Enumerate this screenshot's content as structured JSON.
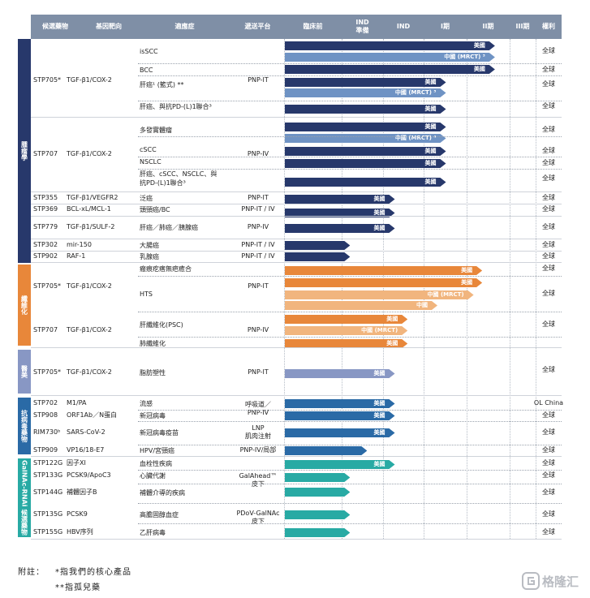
{
  "colors": {
    "oncology": "#27386b",
    "oncology_light": "#6f93c4",
    "fibrosis": "#e8873a",
    "fibrosis_light": "#f1b57e",
    "aesthetics": "#8897c4",
    "antiviral": "#2a6aa6",
    "galnac": "#28aaa4",
    "header": "#7f8fa6"
  },
  "columns": [
    "候選藥物",
    "基因靶向",
    "適應症",
    "遞送平台",
    "臨床前",
    "IND\n準備",
    "IND",
    "I期",
    "II期",
    "III期",
    "權利"
  ],
  "groups": [
    {
      "label": "腫瘤學",
      "color": "#27386b"
    },
    {
      "label": "纖維化",
      "color": "#e8873a"
    },
    {
      "label": "醫美",
      "color": "#8897c4"
    },
    {
      "label": "抗病毒藥物",
      "color": "#2a6aa6"
    },
    {
      "label": "GalNAc-RNAi 候選藥物",
      "color": "#28aaa4"
    }
  ],
  "programs": [
    {
      "drug": "STP705*",
      "target": "TGF-β1/COX-2",
      "platform": "PNP-IT"
    },
    {
      "drug": "STP707",
      "target": "TGF-β1/COX-2",
      "platform": "PNP-IV"
    },
    {
      "drug": "STP355",
      "target": "TGF-β1/VEGFR2",
      "platform": "PNP-IT"
    },
    {
      "drug": "STP369",
      "target": "BCL-xL/MCL-1",
      "platform": "PNP-IT / IV"
    },
    {
      "drug": "STP779",
      "target": "TGF-β1/SULF-2",
      "platform": "PNP-IV"
    },
    {
      "drug": "STP302",
      "target": "mir-150",
      "platform": "PNP-IT / IV"
    },
    {
      "drug": "STP902",
      "target": "RAF-1",
      "platform": "PNP-IT / IV"
    },
    {
      "drug": "STP705*",
      "target": "TGF-β1/COX-2",
      "platform": "PNP-IT"
    },
    {
      "drug": "STP707",
      "target": "TGF-β1/COX-2",
      "platform": "PNP-IV"
    },
    {
      "drug": "STP705*",
      "target": "TGF-β1/COX-2",
      "platform": "PNP-IT"
    },
    {
      "drug": "STP702",
      "target": "M1/PA",
      "platform": "呼吸道／\nPNP-IV"
    },
    {
      "drug": "STP908",
      "target": "ORF1Ab／N蛋白",
      "platform": ""
    },
    {
      "drug": "RIM730ᵇ",
      "target": "SARS-CoV-2",
      "platform": "LNP\n肌肉注射"
    },
    {
      "drug": "STP909",
      "target": "VP16/18-E7",
      "platform": "PNP-IV/局部"
    },
    {
      "drug": "STP122G",
      "target": "因子XI",
      "platform": ""
    },
    {
      "drug": "STP133G",
      "target": "PCSK9/ApoC3",
      "platform": "GalAhead™\n皮下"
    },
    {
      "drug": "STP144G",
      "target": "補體因子B",
      "platform": ""
    },
    {
      "drug": "STP135G",
      "target": "PCSK9",
      "platform": "PDoV-GalNAc\n皮下"
    },
    {
      "drug": "STP155G",
      "target": "HBV序列",
      "platform": ""
    }
  ],
  "indications": [
    {
      "name": "isSCC",
      "stage": 4.95,
      "region": "美國",
      "rights": "全球"
    },
    {
      "name": "",
      "stage": 4.95,
      "region": "中國 (MRCT) ³",
      "rights": ""
    },
    {
      "name": "BCC",
      "stage": 4.95,
      "region": "美國",
      "rights": "全球"
    },
    {
      "name": "肝癌¹ (籃式) **",
      "stage": 3.8,
      "region": "美國",
      "rights": "全球"
    },
    {
      "name": "",
      "stage": 3.8,
      "region": "中國 (MRCT) ³",
      "rights": ""
    },
    {
      "name": "肝癌、與抗PD-(L)1聯合³",
      "stage": 3.8,
      "region": "美國",
      "rights": "全球"
    },
    {
      "name": "多發實體瘤",
      "stage": 3.8,
      "region": "美國",
      "rights": "全球"
    },
    {
      "name": "",
      "stage": 3.8,
      "region": "中國 (MRCT) ⁴",
      "rights": ""
    },
    {
      "name": "cSCC",
      "stage": 3.8,
      "region": "美國",
      "rights": "全球"
    },
    {
      "name": "NSCLC",
      "stage": 3.8,
      "region": "美國",
      "rights": "全球"
    },
    {
      "name": "肝癌、cSCC、NSCLC、與\n抗PD-(L)1聯合³",
      "stage": 3.8,
      "region": "美國",
      "rights": "全球"
    },
    {
      "name": "泛癌",
      "stage": 2.6,
      "region": "美國",
      "rights": "全球"
    },
    {
      "name": "頭頸癌/BC",
      "stage": 2.6,
      "region": "美國",
      "rights": "全球"
    },
    {
      "name": "肝癌／肺癌／胰腺癌",
      "stage": 2.6,
      "region": "美國",
      "rights": "全球"
    },
    {
      "name": "大腸癌",
      "stage": 1.55,
      "region": "",
      "rights": "全球"
    },
    {
      "name": "乳腺癌",
      "stage": 1.55,
      "region": "",
      "rights": "全球"
    },
    {
      "name": "瘢痕疙瘩無疤癒合",
      "stage": 4.65,
      "region": "美國",
      "rights": "全球"
    },
    {
      "name": "",
      "stage": 4.65,
      "region": "美國",
      "rights": ""
    },
    {
      "name": "HTS",
      "stage": 4.45,
      "region": "中國 (MRCT)",
      "rights": "全球"
    },
    {
      "name": "",
      "stage": 3.6,
      "region": "中國",
      "rights": ""
    },
    {
      "name": "肝纖維化(PSC)",
      "stage": 2.9,
      "region": "美國",
      "rights": "全球"
    },
    {
      "name": "",
      "stage": 2.9,
      "region": "中國 (MRCT)",
      "rights": ""
    },
    {
      "name": "肺纖維化",
      "stage": 2.9,
      "region": "美國",
      "rights": ""
    },
    {
      "name": "脂肪塑性",
      "stage": 2.6,
      "region": "美國",
      "rights": "全球"
    },
    {
      "name": "流感",
      "stage": 2.6,
      "region": "美國",
      "rights": "OL China"
    },
    {
      "name": "新冠病毒",
      "stage": 2.6,
      "region": "美國",
      "rights": "全球"
    },
    {
      "name": "新冠病毒疫苗",
      "stage": 2.6,
      "region": "美國",
      "rights": "全球"
    },
    {
      "name": "HPV/宮頸癌",
      "stage": 1.95,
      "region": "",
      "rights": "全球"
    },
    {
      "name": "血栓性疾病",
      "stage": 2.6,
      "region": "美國",
      "rights": "全球"
    },
    {
      "name": "心臟代謝",
      "stage": 1.55,
      "region": "",
      "rights": "全球"
    },
    {
      "name": "補體介導的疾病",
      "stage": 1.55,
      "region": "",
      "rights": "全球"
    },
    {
      "name": "高膽固醇血症",
      "stage": 1.55,
      "region": "",
      "rights": "全球"
    },
    {
      "name": "乙肝病毒",
      "stage": 1.55,
      "region": "",
      "rights": "全球"
    }
  ],
  "footnotes": {
    "label": "附註：",
    "core": "*指我們的核心產品",
    "orphan": "**指孤兒藥"
  },
  "logo": {
    "text": "格隆汇"
  }
}
